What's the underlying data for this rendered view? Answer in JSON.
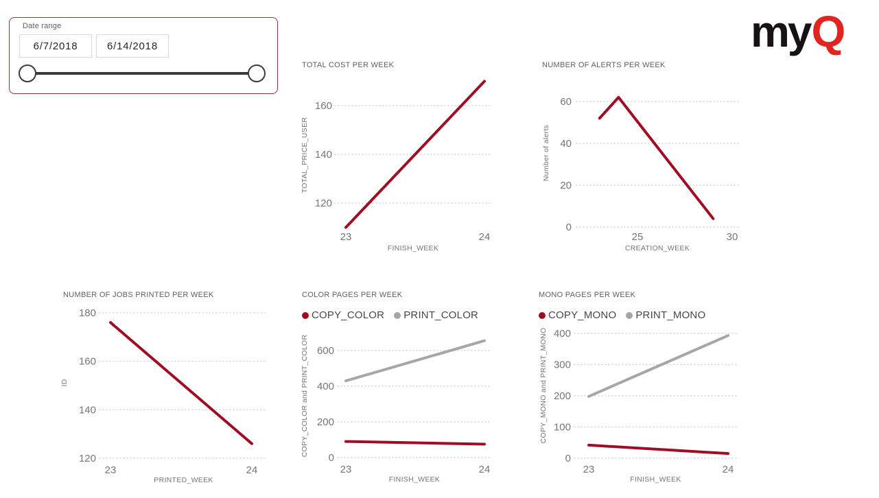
{
  "logo": {
    "text_black": "my",
    "text_red": "Q",
    "black_color": "#171214",
    "red_color": "#e2231e"
  },
  "slicer": {
    "label": "Date range",
    "start_date": "6/7/2018",
    "end_date": "6/14/2018",
    "border_color": "#a22c3d"
  },
  "colors": {
    "series_red": "#a00d23",
    "series_gray": "#a6a6a6",
    "gridline": "#d2d2d2",
    "tick_text": "#767676",
    "title_text": "#605e5c",
    "legend_text": "#474747"
  },
  "chart_data": [
    {
      "type": "line",
      "title": "TOTAL COST PER WEEK",
      "xlabel": "FINISH_WEEK",
      "ylabel": "TOTAL_PRICE_USER",
      "x_ticks": [
        23,
        24
      ],
      "y_ticks": [
        120,
        140,
        160
      ],
      "grid": true,
      "legend_position": "none",
      "series": [
        {
          "name": "TOTAL_PRICE_USER",
          "color": "#a00d23",
          "x": [
            23,
            24
          ],
          "values": [
            110,
            170
          ]
        }
      ]
    },
    {
      "type": "line",
      "title": "NUMBER OF ALERTS PER WEEK",
      "xlabel": "CREATION_WEEK",
      "ylabel": "Number of alerts",
      "x_ticks": [
        25,
        30
      ],
      "y_ticks": [
        0,
        20,
        40,
        60
      ],
      "grid": true,
      "legend_position": "none",
      "series": [
        {
          "name": "Number of alerts",
          "color": "#a00d23",
          "x": [
            23,
            24,
            29
          ],
          "values": [
            52,
            62,
            4
          ]
        }
      ]
    },
    {
      "type": "line",
      "title": "NUMBER OF JOBS PRINTED PER WEEK",
      "xlabel": "PRINTED_WEEK",
      "ylabel": "ID",
      "x_ticks": [
        23,
        24
      ],
      "y_ticks": [
        120,
        140,
        160,
        180
      ],
      "grid": true,
      "legend_position": "none",
      "series": [
        {
          "name": "ID",
          "color": "#a00d23",
          "x": [
            23,
            24
          ],
          "values": [
            176,
            126
          ]
        }
      ]
    },
    {
      "type": "line",
      "title": "COLOR PAGES PER WEEK",
      "xlabel": "FINISH_WEEK",
      "ylabel": "COPY_COLOR and PRINT_COLOR",
      "x_ticks": [
        23,
        24
      ],
      "y_ticks": [
        0,
        200,
        400,
        600
      ],
      "grid": true,
      "legend_position": "top",
      "series": [
        {
          "name": "COPY_COLOR",
          "color": "#a00d23",
          "x": [
            23,
            24
          ],
          "values": [
            90,
            75
          ]
        },
        {
          "name": "PRINT_COLOR",
          "color": "#a6a6a6",
          "x": [
            23,
            24
          ],
          "values": [
            430,
            655
          ]
        }
      ]
    },
    {
      "type": "line",
      "title": "MONO PAGES PER WEEK",
      "xlabel": "FINISH_WEEK",
      "ylabel": "COPY_MONO and PRINT_MONO",
      "x_ticks": [
        23,
        24
      ],
      "y_ticks": [
        0,
        100,
        200,
        300,
        400
      ],
      "grid": true,
      "legend_position": "top",
      "series": [
        {
          "name": "COPY_MONO",
          "color": "#a00d23",
          "x": [
            23,
            24
          ],
          "values": [
            42,
            15
          ]
        },
        {
          "name": "PRINT_MONO",
          "color": "#a6a6a6",
          "x": [
            23,
            24
          ],
          "values": [
            198,
            393
          ]
        }
      ]
    }
  ]
}
